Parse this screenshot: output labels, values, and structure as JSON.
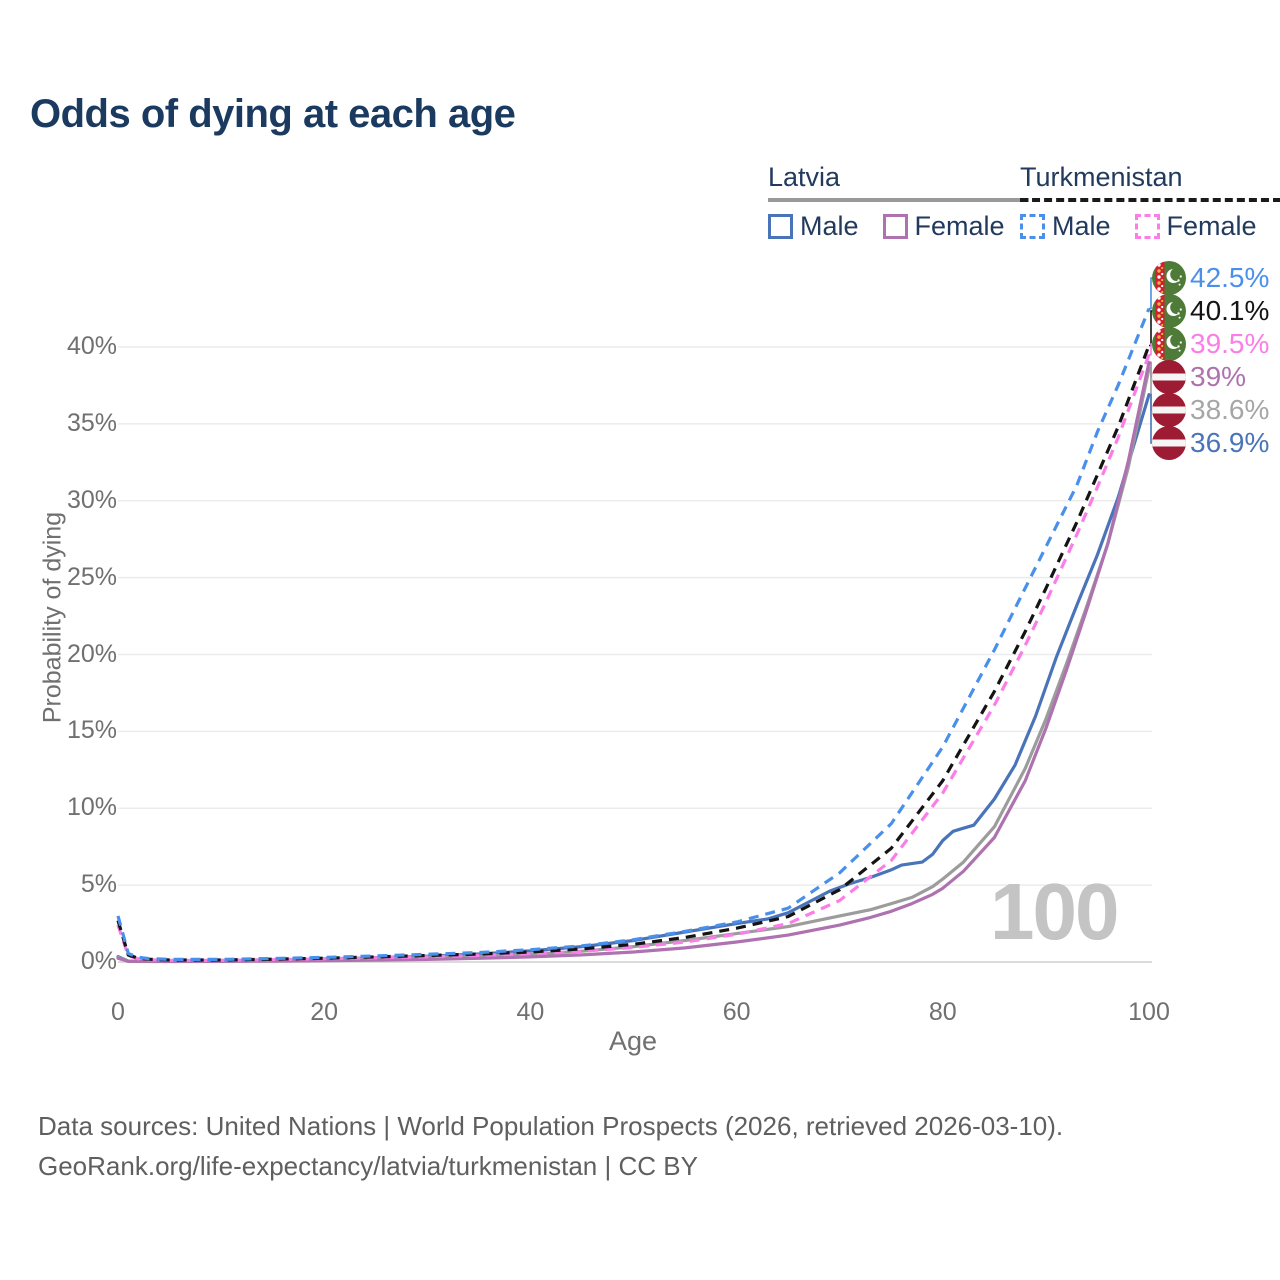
{
  "title": "Odds of dying at each age",
  "legend": {
    "groups": [
      {
        "name": "Latvia",
        "line_style": "solid",
        "underline_color": "#999999",
        "items": [
          {
            "label": "Male",
            "color": "#4a74b9",
            "dashed": false
          },
          {
            "label": "Female",
            "color": "#ad72af",
            "dashed": false
          }
        ]
      },
      {
        "name": "Turkmenistan",
        "line_style": "dashed",
        "underline_color": "#1a1a1a",
        "items": [
          {
            "label": "Male",
            "color": "#4a90ea",
            "dashed": true
          },
          {
            "label": "Female",
            "color": "#fb7de8",
            "dashed": true
          }
        ]
      }
    ]
  },
  "chart_data": {
    "type": "line",
    "title": "Odds of dying at each age",
    "xlabel": "Age",
    "ylabel": "Probability of dying",
    "x_ticks": [
      0,
      20,
      40,
      60,
      80,
      100
    ],
    "y_ticks": [
      "0%",
      "5%",
      "10%",
      "15%",
      "20%",
      "25%",
      "30%",
      "35%",
      "40%"
    ],
    "xlim": [
      0,
      100
    ],
    "ylim_pct": [
      0,
      44
    ],
    "grid": "horizontal",
    "legend_position": "top-right",
    "watermark": "100",
    "series": [
      {
        "name": "Turkmenistan Male",
        "country": "turkmenistan",
        "sex": "male",
        "color": "#4a90ea",
        "dashed": true,
        "end_label": "42.5%",
        "label_color": "#4a90ea",
        "points": [
          [
            0,
            3.0
          ],
          [
            1,
            0.55
          ],
          [
            2,
            0.3
          ],
          [
            3,
            0.22
          ],
          [
            5,
            0.17
          ],
          [
            10,
            0.17
          ],
          [
            15,
            0.23
          ],
          [
            20,
            0.3
          ],
          [
            25,
            0.4
          ],
          [
            30,
            0.5
          ],
          [
            35,
            0.62
          ],
          [
            40,
            0.8
          ],
          [
            45,
            1.05
          ],
          [
            50,
            1.45
          ],
          [
            55,
            2.0
          ],
          [
            60,
            2.6
          ],
          [
            65,
            3.5
          ],
          [
            70,
            5.8
          ],
          [
            75,
            9.0
          ],
          [
            80,
            14.0
          ],
          [
            85,
            20.3
          ],
          [
            87,
            23.0
          ],
          [
            90,
            27.0
          ],
          [
            93,
            31.0
          ],
          [
            95,
            34.5
          ],
          [
            97,
            37.5
          ],
          [
            100,
            42.5
          ]
        ]
      },
      {
        "name": "Turkmenistan Both sexes",
        "country": "turkmenistan",
        "sex": "both",
        "color": "#141414",
        "dashed": true,
        "end_label": "40.1%",
        "label_color": "#141414",
        "points": [
          [
            0,
            2.7
          ],
          [
            1,
            0.45
          ],
          [
            2,
            0.25
          ],
          [
            3,
            0.18
          ],
          [
            5,
            0.13
          ],
          [
            10,
            0.13
          ],
          [
            15,
            0.18
          ],
          [
            20,
            0.25
          ],
          [
            25,
            0.33
          ],
          [
            30,
            0.42
          ],
          [
            35,
            0.52
          ],
          [
            40,
            0.65
          ],
          [
            45,
            0.85
          ],
          [
            50,
            1.15
          ],
          [
            55,
            1.6
          ],
          [
            60,
            2.2
          ],
          [
            65,
            2.95
          ],
          [
            70,
            4.7
          ],
          [
            75,
            7.4
          ],
          [
            80,
            11.8
          ],
          [
            85,
            17.6
          ],
          [
            88,
            21.5
          ],
          [
            90,
            24.3
          ],
          [
            93,
            28.6
          ],
          [
            95,
            31.7
          ],
          [
            97,
            34.8
          ],
          [
            100,
            40.1
          ]
        ]
      },
      {
        "name": "Turkmenistan Female",
        "country": "turkmenistan",
        "sex": "female",
        "color": "#fb7de8",
        "dashed": true,
        "end_label": "39.5%",
        "label_color": "#fb7de8",
        "points": [
          [
            0,
            2.4
          ],
          [
            1,
            0.4
          ],
          [
            2,
            0.2
          ],
          [
            3,
            0.15
          ],
          [
            5,
            0.11
          ],
          [
            10,
            0.11
          ],
          [
            15,
            0.15
          ],
          [
            20,
            0.21
          ],
          [
            25,
            0.27
          ],
          [
            30,
            0.34
          ],
          [
            35,
            0.43
          ],
          [
            40,
            0.54
          ],
          [
            45,
            0.7
          ],
          [
            50,
            0.95
          ],
          [
            55,
            1.3
          ],
          [
            60,
            1.8
          ],
          [
            65,
            2.5
          ],
          [
            70,
            4.0
          ],
          [
            75,
            6.6
          ],
          [
            80,
            11.0
          ],
          [
            85,
            16.7
          ],
          [
            88,
            20.6
          ],
          [
            90,
            23.4
          ],
          [
            93,
            27.8
          ],
          [
            95,
            30.9
          ],
          [
            97,
            34.1
          ],
          [
            100,
            39.5
          ]
        ]
      },
      {
        "name": "Latvia Female",
        "country": "latvia",
        "sex": "female",
        "color": "#ad72af",
        "dashed": false,
        "end_label": "39%",
        "label_color": "#ad72af",
        "points": [
          [
            0,
            0.25
          ],
          [
            1,
            0.04
          ],
          [
            5,
            0.03
          ],
          [
            10,
            0.04
          ],
          [
            15,
            0.06
          ],
          [
            20,
            0.09
          ],
          [
            25,
            0.12
          ],
          [
            30,
            0.17
          ],
          [
            35,
            0.24
          ],
          [
            40,
            0.33
          ],
          [
            45,
            0.46
          ],
          [
            50,
            0.65
          ],
          [
            55,
            0.92
          ],
          [
            60,
            1.3
          ],
          [
            65,
            1.75
          ],
          [
            70,
            2.4
          ],
          [
            73,
            2.9
          ],
          [
            75,
            3.3
          ],
          [
            77,
            3.8
          ],
          [
            79,
            4.4
          ],
          [
            80,
            4.8
          ],
          [
            82,
            5.9
          ],
          [
            85,
            8.1
          ],
          [
            88,
            11.8
          ],
          [
            90,
            15.2
          ],
          [
            92,
            19.0
          ],
          [
            94,
            23.0
          ],
          [
            96,
            27.2
          ],
          [
            98,
            32.6
          ],
          [
            100,
            39.0
          ]
        ]
      },
      {
        "name": "Latvia Both sexes",
        "country": "latvia",
        "sex": "both",
        "color": "#9c9c9c",
        "dashed": false,
        "end_label": "38.6%",
        "label_color": "#a6a6a6",
        "points": [
          [
            0,
            0.3
          ],
          [
            1,
            0.05
          ],
          [
            5,
            0.04
          ],
          [
            10,
            0.05
          ],
          [
            15,
            0.09
          ],
          [
            20,
            0.14
          ],
          [
            25,
            0.19
          ],
          [
            30,
            0.26
          ],
          [
            35,
            0.36
          ],
          [
            40,
            0.5
          ],
          [
            45,
            0.7
          ],
          [
            50,
            1.0
          ],
          [
            55,
            1.4
          ],
          [
            60,
            1.85
          ],
          [
            65,
            2.3
          ],
          [
            70,
            3.0
          ],
          [
            73,
            3.4
          ],
          [
            75,
            3.8
          ],
          [
            77,
            4.2
          ],
          [
            79,
            4.9
          ],
          [
            80,
            5.4
          ],
          [
            82,
            6.5
          ],
          [
            85,
            8.8
          ],
          [
            88,
            12.6
          ],
          [
            90,
            15.8
          ],
          [
            92,
            19.4
          ],
          [
            94,
            23.2
          ],
          [
            96,
            27.2
          ],
          [
            98,
            32.2
          ],
          [
            100,
            38.6
          ]
        ]
      },
      {
        "name": "Latvia Male",
        "country": "latvia",
        "sex": "male",
        "color": "#4a74b9",
        "dashed": false,
        "end_label": "36.9%",
        "label_color": "#4a74b9",
        "points": [
          [
            0,
            0.35
          ],
          [
            1,
            0.06
          ],
          [
            5,
            0.05
          ],
          [
            10,
            0.06
          ],
          [
            15,
            0.12
          ],
          [
            20,
            0.2
          ],
          [
            25,
            0.28
          ],
          [
            30,
            0.38
          ],
          [
            35,
            0.52
          ],
          [
            40,
            0.72
          ],
          [
            45,
            1.0
          ],
          [
            50,
            1.4
          ],
          [
            55,
            1.95
          ],
          [
            60,
            2.5
          ],
          [
            63,
            2.8
          ],
          [
            65,
            3.2
          ],
          [
            67,
            3.9
          ],
          [
            69,
            4.6
          ],
          [
            71,
            5.1
          ],
          [
            73,
            5.5
          ],
          [
            75,
            6.0
          ],
          [
            76,
            6.3
          ],
          [
            78,
            6.5
          ],
          [
            79,
            7.0
          ],
          [
            80,
            7.9
          ],
          [
            81,
            8.5
          ],
          [
            82,
            8.7
          ],
          [
            83,
            8.9
          ],
          [
            85,
            10.6
          ],
          [
            87,
            12.8
          ],
          [
            89,
            16.0
          ],
          [
            91,
            19.8
          ],
          [
            93,
            23.2
          ],
          [
            95,
            26.5
          ],
          [
            97,
            30.2
          ],
          [
            100,
            36.9
          ]
        ]
      }
    ],
    "flags": {
      "latvia": {
        "red": "#9e1b34",
        "white": "#f5f5f5"
      },
      "turkmenistan": {
        "green": "#4e7b38",
        "red": "#cf2130",
        "gold": "#e8b23a",
        "white": "#ffffff"
      }
    }
  },
  "footer": {
    "line1": "Data sources: United Nations | World Population Prospects (2026, retrieved 2026-03-10).",
    "line2": "GeoRank.org/life-expectancy/latvia/turkmenistan | CC BY"
  }
}
